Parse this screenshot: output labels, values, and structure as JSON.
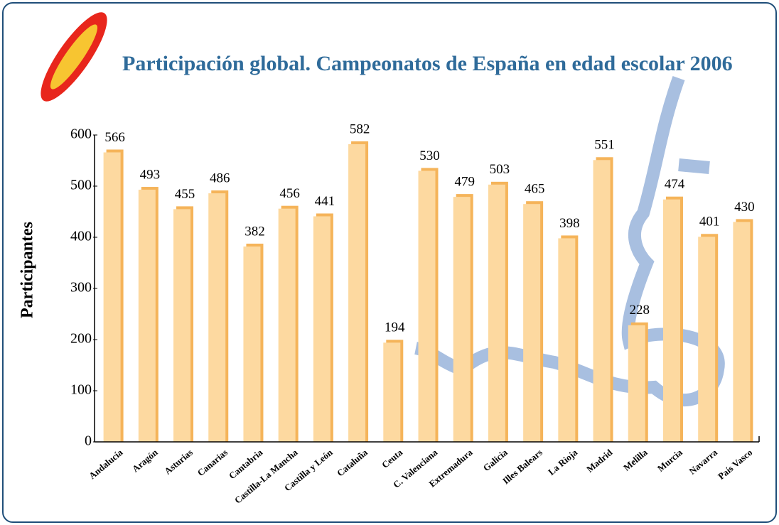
{
  "chart_data": {
    "type": "bar",
    "title": "Participación global. Campeonatos de España en edad escolar 2006",
    "y_label": "Participantes",
    "categories": [
      "Andalucía",
      "Aragón",
      "Asturias",
      "Canarias",
      "Cantabria",
      "Castilla-La Mancha",
      "Castilla y León",
      "Cataluña",
      "Ceuta",
      "C. Valenciana",
      "Extremadura",
      "Galicia",
      "Illes Balears",
      "La Rioja",
      "Madrid",
      "Melilla",
      "Murcia",
      "Navarra",
      "País Vasco"
    ],
    "values": [
      566,
      493,
      455,
      486,
      382,
      456,
      441,
      582,
      194,
      530,
      479,
      503,
      465,
      398,
      551,
      228,
      474,
      401,
      430
    ],
    "color": "#fdd9a0",
    "ylim": [
      0,
      600
    ],
    "yticks": [
      0,
      100,
      200,
      300,
      400,
      500,
      600
    ],
    "grid": false
  }
}
